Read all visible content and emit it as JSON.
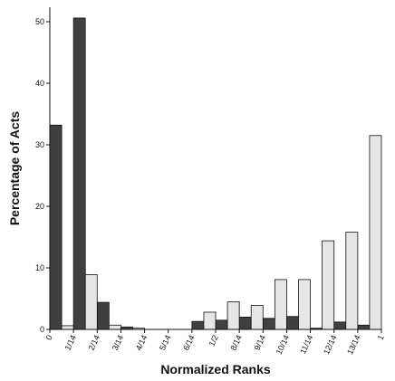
{
  "chart_data": {
    "type": "bar",
    "xlabel": "Normalized Ranks",
    "ylabel": "Percentage of Acts",
    "ylim": [
      0,
      52
    ],
    "yticks": [
      0,
      10,
      20,
      30,
      40,
      50
    ],
    "categories": [
      "0",
      "1/14",
      "2/14",
      "3/14",
      "4/14",
      "5/14",
      "6/14",
      "1/2",
      "8/14",
      "9/14",
      "10/14",
      "11/14",
      "12/14",
      "13/14",
      "1"
    ],
    "grid": false,
    "legend": "none",
    "series": [
      {
        "color": "#404040",
        "values": [
          33.2,
          50.6,
          4.4,
          0.4,
          0.0,
          0.0,
          1.3,
          1.5,
          2.0,
          1.8,
          2.1,
          0.2,
          1.2,
          0.7,
          null
        ]
      },
      {
        "color": "#e6e6e6",
        "values": [
          0.6,
          8.9,
          0.7,
          0.2,
          0.0,
          0.0,
          2.8,
          4.5,
          3.9,
          8.1,
          8.1,
          14.4,
          15.8,
          31.5,
          null
        ]
      }
    ]
  }
}
